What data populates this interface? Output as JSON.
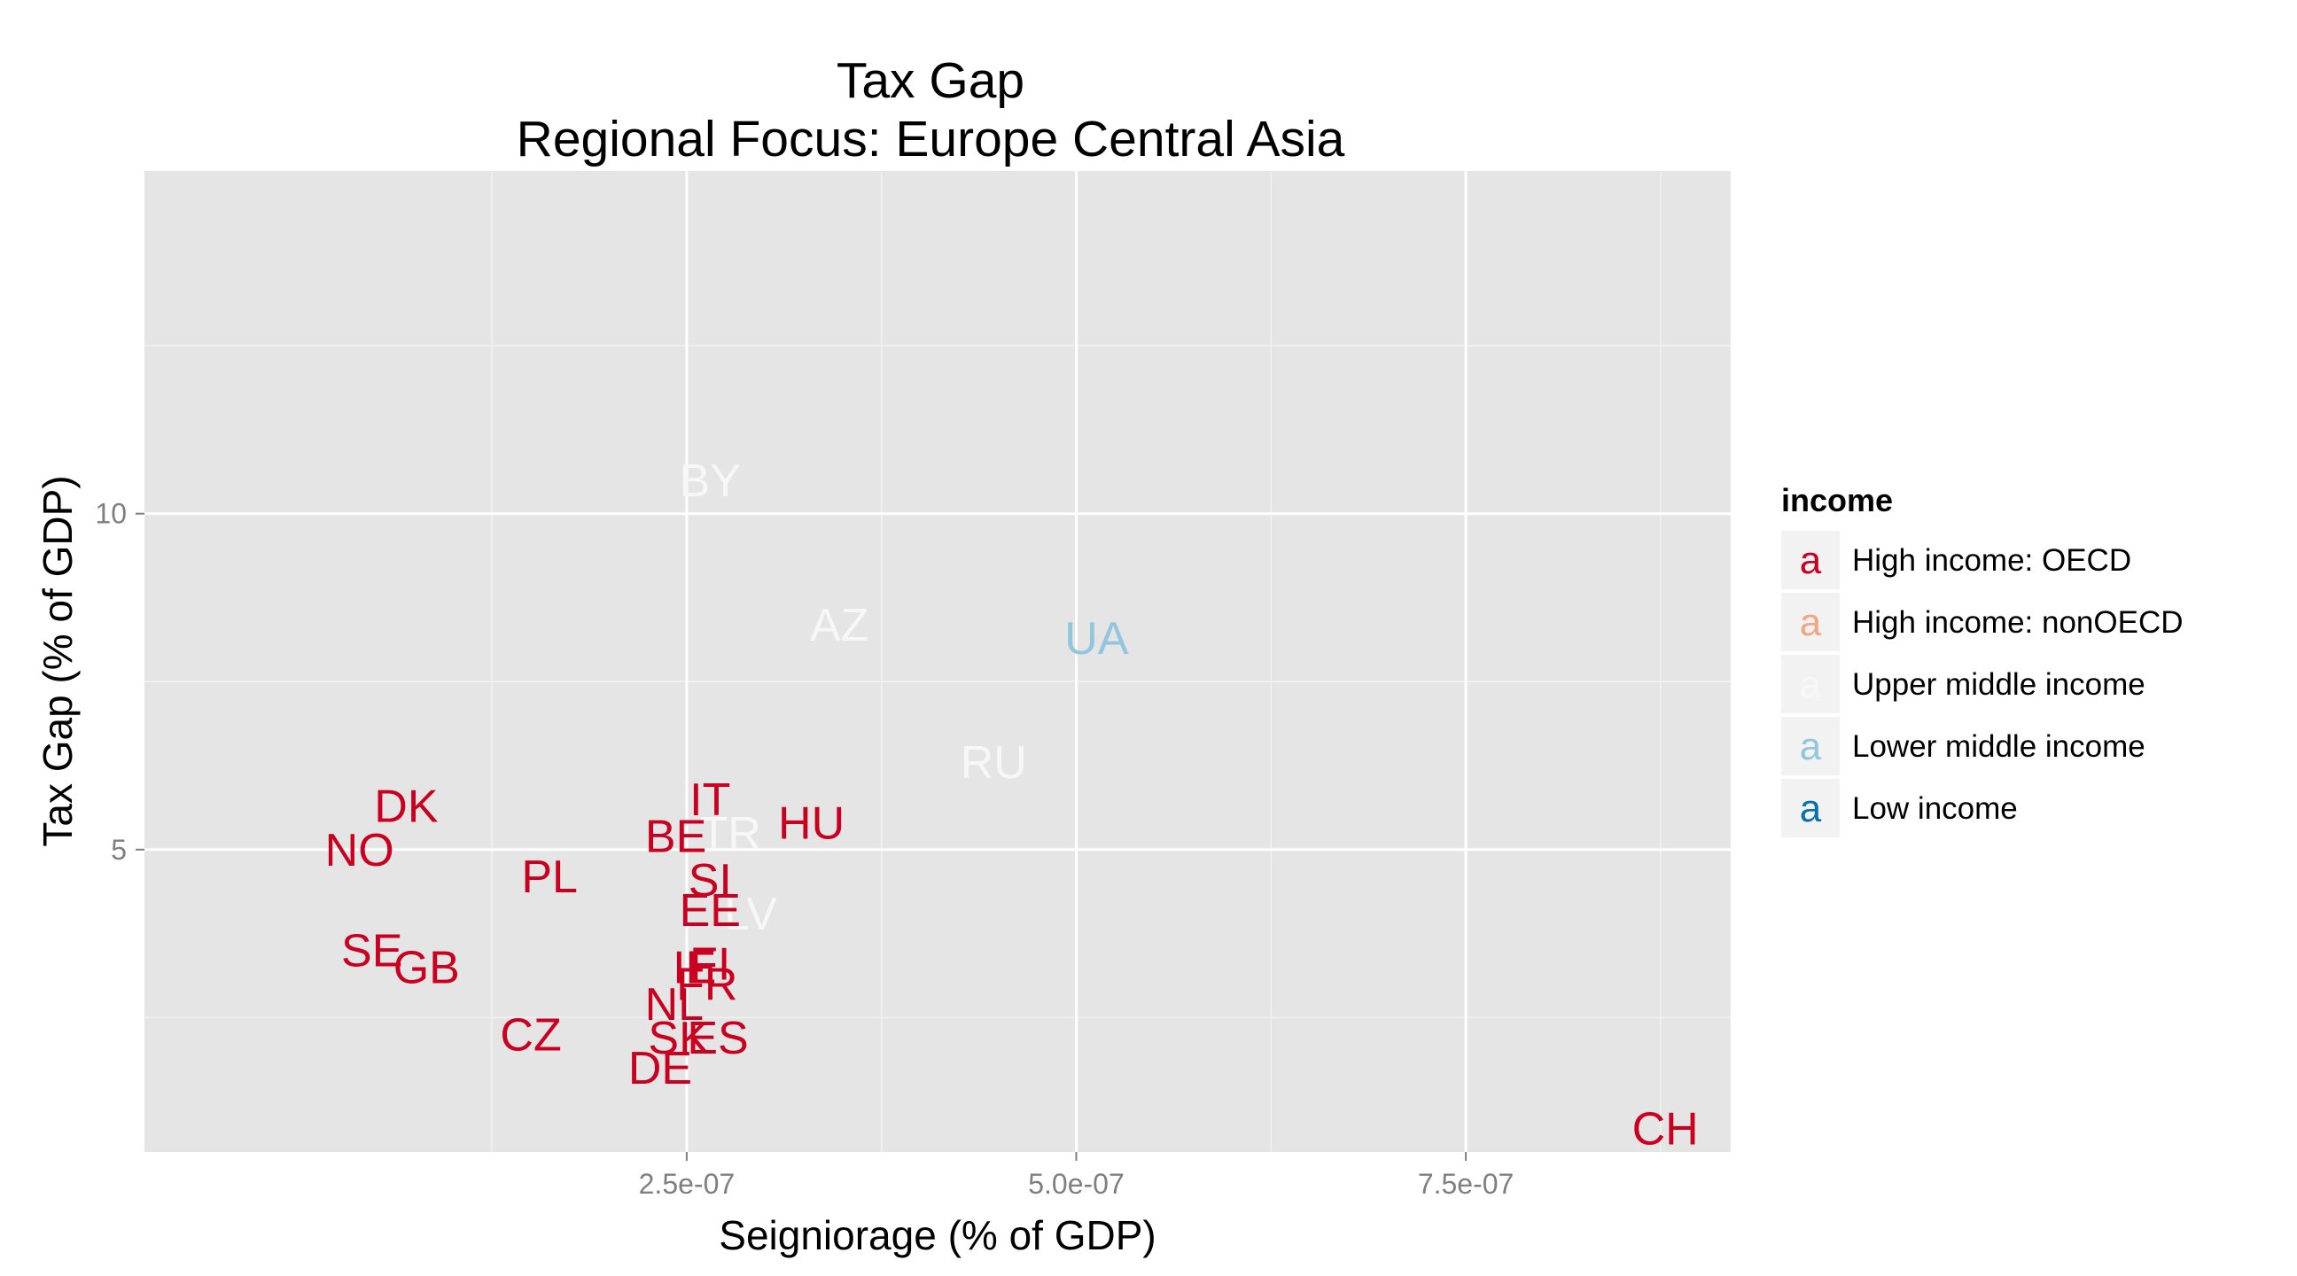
{
  "chart_data": {
    "type": "scatter",
    "title": "Tax Gap",
    "subtitle": "Regional Focus: Europe Central Asia",
    "xlabel": "Seigniorage (% of GDP)",
    "ylabel": "Tax Gap (% of GDP)",
    "xlim": [
      -9.8e-08,
      9.2e-07
    ],
    "ylim": [
      0.5,
      15.1
    ],
    "x_ticks": [
      2.5e-07,
      5e-07,
      7.5e-07
    ],
    "x_tick_labels": [
      "2.5e-07",
      "5.0e-07",
      "7.5e-07"
    ],
    "y_ticks": [
      5,
      10
    ],
    "y_tick_labels": [
      "5",
      "10"
    ],
    "grid": true,
    "background_color": "#E5E5E5",
    "grid_color": "#FFFFFF",
    "legend": {
      "title": "income",
      "placement": "right",
      "key_glyph": "a",
      "entries": [
        {
          "label": "High income: OECD",
          "color": "#CA0020"
        },
        {
          "label": "High income: nonOECD",
          "color": "#F4A582"
        },
        {
          "label": "Upper middle income",
          "color": "#F7F7F7"
        },
        {
          "label": "Lower middle income",
          "color": "#92C5DE"
        },
        {
          "label": "Low income",
          "color": "#0571B0"
        }
      ]
    },
    "points": [
      {
        "label": "BY",
        "x": 2.65e-07,
        "y": 10.5,
        "group": "Upper middle income"
      },
      {
        "label": "AZ",
        "x": 3.48e-07,
        "y": 8.35,
        "group": "Upper middle income"
      },
      {
        "label": "UA",
        "x": 5.13e-07,
        "y": 8.15,
        "group": "Lower middle income"
      },
      {
        "label": "RU",
        "x": 4.47e-07,
        "y": 6.3,
        "group": "Upper middle income"
      },
      {
        "label": "TR",
        "x": 2.78e-07,
        "y": 5.25,
        "group": "Upper middle income"
      },
      {
        "label": "LV",
        "x": 2.91e-07,
        "y": 4.05,
        "group": "Upper middle income"
      },
      {
        "label": "DK",
        "x": 7e-08,
        "y": 5.65,
        "group": "High income: OECD"
      },
      {
        "label": "NO",
        "x": 4e-08,
        "y": 5.0,
        "group": "High income: OECD"
      },
      {
        "label": "PL",
        "x": 1.62e-07,
        "y": 4.6,
        "group": "High income: OECD"
      },
      {
        "label": "SE",
        "x": 4.8e-08,
        "y": 3.5,
        "group": "High income: OECD"
      },
      {
        "label": "GB",
        "x": 8.3e-08,
        "y": 3.25,
        "group": "High income: OECD"
      },
      {
        "label": "CZ",
        "x": 1.5e-07,
        "y": 2.25,
        "group": "High income: OECD"
      },
      {
        "label": "IT",
        "x": 2.65e-07,
        "y": 5.75,
        "group": "High income: OECD"
      },
      {
        "label": "BE",
        "x": 2.43e-07,
        "y": 5.2,
        "group": "High income: OECD"
      },
      {
        "label": "HU",
        "x": 3.3e-07,
        "y": 5.4,
        "group": "High income: OECD"
      },
      {
        "label": "SI",
        "x": 2.65e-07,
        "y": 4.55,
        "group": "High income: OECD"
      },
      {
        "label": "EE",
        "x": 2.65e-07,
        "y": 4.1,
        "group": "High income: OECD"
      },
      {
        "label": "IE",
        "x": 2.55e-07,
        "y": 3.25,
        "group": "High income: OECD"
      },
      {
        "label": "FI",
        "x": 2.65e-07,
        "y": 3.3,
        "group": "High income: OECD"
      },
      {
        "label": "FR",
        "x": 2.63e-07,
        "y": 3.0,
        "group": "High income: OECD"
      },
      {
        "label": "NL",
        "x": 2.42e-07,
        "y": 2.7,
        "group": "High income: OECD"
      },
      {
        "label": "SK",
        "x": 2.45e-07,
        "y": 2.2,
        "group": "High income: OECD"
      },
      {
        "label": "ES",
        "x": 2.7e-07,
        "y": 2.2,
        "group": "High income: OECD"
      },
      {
        "label": "DE",
        "x": 2.33e-07,
        "y": 1.75,
        "group": "High income: OECD"
      },
      {
        "label": "CH",
        "x": 8.78e-07,
        "y": 0.85,
        "group": "High income: OECD"
      }
    ]
  }
}
